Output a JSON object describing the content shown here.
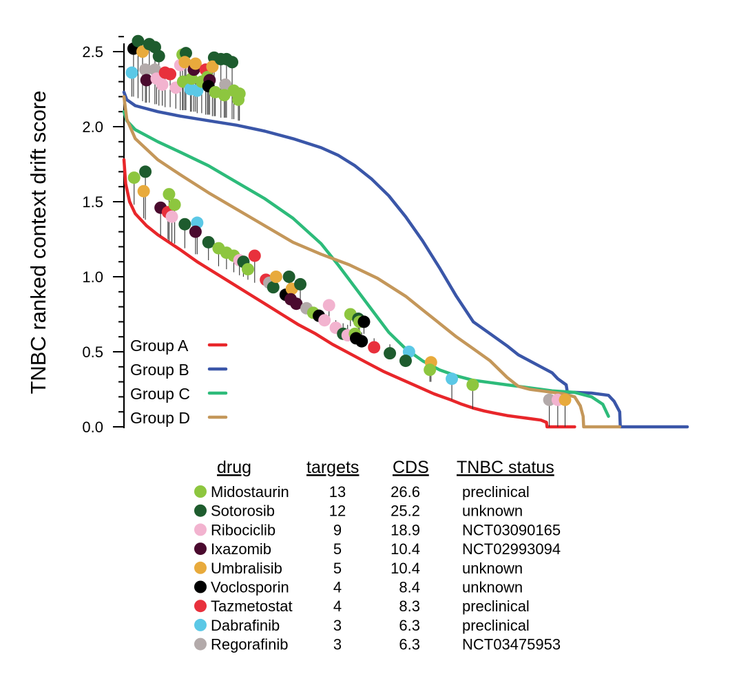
{
  "chart_data": {
    "type": "line",
    "ylabel": "TNBC ranked context drift score",
    "xlabel": "",
    "ylim": [
      0,
      2.5
    ],
    "y_ticks": [
      "0.0",
      "0.5",
      "1.0",
      "1.5",
      "2.0",
      "2.5"
    ],
    "x_range": [
      0,
      1000
    ],
    "legend_position": "bottom-left",
    "series": [
      {
        "name": "Group A",
        "color": "#e8262a",
        "x": [
          0,
          3,
          10,
          20,
          40,
          60,
          80,
          100,
          130,
          160,
          190,
          220,
          250,
          280,
          310,
          340,
          370,
          400,
          430,
          460,
          490,
          520,
          550,
          580,
          600,
          620,
          640,
          660,
          680,
          700,
          720,
          740,
          750,
          751,
          770,
          790,
          800
        ],
        "y": [
          1.78,
          1.62,
          1.5,
          1.42,
          1.34,
          1.28,
          1.23,
          1.18,
          1.1,
          1.03,
          0.96,
          0.89,
          0.82,
          0.75,
          0.68,
          0.62,
          0.55,
          0.49,
          0.43,
          0.37,
          0.32,
          0.27,
          0.22,
          0.18,
          0.15,
          0.125,
          0.105,
          0.09,
          0.075,
          0.065,
          0.055,
          0.045,
          0.03,
          0.0,
          0.0,
          0.0,
          0.0
        ]
      },
      {
        "name": "Group B",
        "color": "#3a56a8",
        "x": [
          0,
          5,
          20,
          60,
          100,
          150,
          200,
          250,
          300,
          350,
          380,
          410,
          440,
          470,
          500,
          530,
          560,
          590,
          620,
          650,
          680,
          700,
          720,
          740,
          760,
          770,
          785,
          787,
          800,
          830,
          860,
          870,
          880,
          881,
          1000
        ],
        "y": [
          2.23,
          2.18,
          2.14,
          2.1,
          2.07,
          2.04,
          2.01,
          1.97,
          1.92,
          1.86,
          1.81,
          1.74,
          1.65,
          1.54,
          1.4,
          1.24,
          1.06,
          0.87,
          0.7,
          0.62,
          0.54,
          0.48,
          0.44,
          0.4,
          0.36,
          0.32,
          0.28,
          0.23,
          0.23,
          0.225,
          0.21,
          0.17,
          0.1,
          0.0,
          0.0
        ]
      },
      {
        "name": "Group C",
        "color": "#2dbb7a",
        "x": [
          0,
          5,
          20,
          60,
          100,
          150,
          200,
          250,
          300,
          350,
          380,
          410,
          440,
          470,
          500,
          530,
          560,
          590,
          620,
          650,
          680,
          700,
          720,
          740,
          760,
          800,
          830,
          850,
          860
        ],
        "y": [
          2.1,
          2.04,
          1.98,
          1.9,
          1.83,
          1.74,
          1.63,
          1.52,
          1.39,
          1.22,
          1.08,
          0.93,
          0.78,
          0.63,
          0.52,
          0.44,
          0.38,
          0.34,
          0.31,
          0.295,
          0.28,
          0.27,
          0.26,
          0.25,
          0.24,
          0.23,
          0.2,
          0.15,
          0.07
        ]
      },
      {
        "name": "Group D",
        "color": "#c4975a",
        "x": [
          0,
          5,
          20,
          60,
          100,
          150,
          200,
          250,
          300,
          350,
          400,
          450,
          500,
          530,
          560,
          590,
          620,
          650,
          680,
          700,
          720,
          740,
          760,
          780,
          800,
          810,
          815,
          816,
          880
        ],
        "y": [
          2.2,
          2.05,
          1.92,
          1.78,
          1.68,
          1.56,
          1.45,
          1.34,
          1.23,
          1.15,
          1.08,
          0.99,
          0.87,
          0.78,
          0.69,
          0.6,
          0.52,
          0.44,
          0.33,
          0.27,
          0.25,
          0.24,
          0.23,
          0.22,
          0.2,
          0.14,
          0.07,
          0.0,
          0.0
        ]
      }
    ],
    "drug_markers": [
      {
        "drug": "Voclosporin",
        "x": 17,
        "y": 2.52,
        "base": 2.2
      },
      {
        "drug": "Sotorosib",
        "x": 25,
        "y": 2.57,
        "base": 2.19
      },
      {
        "drug": "Umbralisib",
        "x": 33,
        "y": 2.5,
        "base": 2.17
      },
      {
        "drug": "Dabrafinib",
        "x": 14,
        "y": 2.36,
        "base": 2.2
      },
      {
        "drug": "Sotorosib",
        "x": 45,
        "y": 2.55,
        "base": 2.16
      },
      {
        "drug": "Regorafinib",
        "x": 38,
        "y": 2.38,
        "base": 2.16
      },
      {
        "drug": "Ixazomib",
        "x": 40,
        "y": 2.31,
        "base": 2.16
      },
      {
        "drug": "Sotorosib",
        "x": 55,
        "y": 2.53,
        "base": 2.15
      },
      {
        "drug": "Regorafinib",
        "x": 55,
        "y": 2.38,
        "base": 2.15
      },
      {
        "drug": "Sotorosib",
        "x": 62,
        "y": 2.47,
        "base": 2.14
      },
      {
        "drug": "Ribociclib",
        "x": 58,
        "y": 2.32,
        "base": 2.15
      },
      {
        "drug": "Ribociclib",
        "x": 68,
        "y": 2.28,
        "base": 2.14
      },
      {
        "drug": "Tazmetostat",
        "x": 73,
        "y": 2.36,
        "base": 2.13
      },
      {
        "drug": "Tazmetostat",
        "x": 82,
        "y": 2.35,
        "base": 2.13
      },
      {
        "drug": "Ribociclib",
        "x": 92,
        "y": 2.26,
        "base": 2.12
      },
      {
        "drug": "Ribociclib",
        "x": 100,
        "y": 2.41,
        "base": 2.11
      },
      {
        "drug": "Midostaurin",
        "x": 104,
        "y": 2.48,
        "base": 2.11
      },
      {
        "drug": "Sotorosib",
        "x": 110,
        "y": 2.49,
        "base": 2.11
      },
      {
        "drug": "Umbralisib",
        "x": 108,
        "y": 2.43,
        "base": 2.11
      },
      {
        "drug": "Midostaurin",
        "x": 105,
        "y": 2.3,
        "base": 2.11
      },
      {
        "drug": "Dabrafinib",
        "x": 118,
        "y": 2.25,
        "base": 2.1
      },
      {
        "drug": "Midostaurin",
        "x": 120,
        "y": 2.32,
        "base": 2.1
      },
      {
        "drug": "Ixazomib",
        "x": 124,
        "y": 2.38,
        "base": 2.1
      },
      {
        "drug": "Umbralisib",
        "x": 127,
        "y": 2.42,
        "base": 2.1
      },
      {
        "drug": "Dabrafinib",
        "x": 130,
        "y": 2.24,
        "base": 2.09
      },
      {
        "drug": "Midostaurin",
        "x": 138,
        "y": 2.3,
        "base": 2.09
      },
      {
        "drug": "Tazmetostat",
        "x": 145,
        "y": 2.38,
        "base": 2.08
      },
      {
        "drug": "Midostaurin",
        "x": 148,
        "y": 2.33,
        "base": 2.08
      },
      {
        "drug": "Ixazomib",
        "x": 152,
        "y": 2.31,
        "base": 2.08
      },
      {
        "drug": "Voclosporin",
        "x": 150,
        "y": 2.27,
        "base": 2.08
      },
      {
        "drug": "Sotorosib",
        "x": 160,
        "y": 2.46,
        "base": 2.07
      },
      {
        "drug": "Umbralisib",
        "x": 157,
        "y": 2.4,
        "base": 2.07
      },
      {
        "drug": "Midostaurin",
        "x": 162,
        "y": 2.23,
        "base": 2.07
      },
      {
        "drug": "Sotorosib",
        "x": 172,
        "y": 2.45,
        "base": 2.06
      },
      {
        "drug": "Regorafinib",
        "x": 180,
        "y": 2.28,
        "base": 2.06
      },
      {
        "drug": "Sotorosib",
        "x": 182,
        "y": 2.45,
        "base": 2.06
      },
      {
        "drug": "Midostaurin",
        "x": 178,
        "y": 2.21,
        "base": 2.06
      },
      {
        "drug": "Sotorosib",
        "x": 192,
        "y": 2.43,
        "base": 2.05
      },
      {
        "drug": "Midostaurin",
        "x": 195,
        "y": 2.24,
        "base": 2.05
      },
      {
        "drug": "Midostaurin",
        "x": 205,
        "y": 2.22,
        "base": 2.04
      },
      {
        "drug": "Midostaurin",
        "x": 203,
        "y": 2.18,
        "base": 2.04
      },
      {
        "drug": "Midostaurin",
        "x": 18,
        "y": 1.66,
        "base": 1.48
      },
      {
        "drug": "Sotorosib",
        "x": 38,
        "y": 1.7,
        "base": 1.38
      },
      {
        "drug": "Umbralisib",
        "x": 35,
        "y": 1.57,
        "base": 1.39
      },
      {
        "drug": "Midostaurin",
        "x": 80,
        "y": 1.55,
        "base": 1.24
      },
      {
        "drug": "Ixazomib",
        "x": 65,
        "y": 1.46,
        "base": 1.27
      },
      {
        "drug": "Tazmetostat",
        "x": 78,
        "y": 1.43,
        "base": 1.25
      },
      {
        "drug": "Ribociclib",
        "x": 85,
        "y": 1.4,
        "base": 1.23
      },
      {
        "drug": "Midostaurin",
        "x": 90,
        "y": 1.48,
        "base": 1.22
      },
      {
        "drug": "Sotorosib",
        "x": 108,
        "y": 1.35,
        "base": 1.19
      },
      {
        "drug": "Dabrafinib",
        "x": 130,
        "y": 1.36,
        "base": 1.15
      },
      {
        "drug": "Ixazomib",
        "x": 127,
        "y": 1.3,
        "base": 1.15
      },
      {
        "drug": "Sotorosib",
        "x": 150,
        "y": 1.23,
        "base": 1.11
      },
      {
        "drug": "Midostaurin",
        "x": 168,
        "y": 1.19,
        "base": 1.07
      },
      {
        "drug": "Midostaurin",
        "x": 182,
        "y": 1.16,
        "base": 1.05
      },
      {
        "drug": "Midostaurin",
        "x": 195,
        "y": 1.14,
        "base": 1.03
      },
      {
        "drug": "Ribociclib",
        "x": 205,
        "y": 1.11,
        "base": 1.01
      },
      {
        "drug": "Sotorosib",
        "x": 212,
        "y": 1.1,
        "base": 1.0
      },
      {
        "drug": "Midostaurin",
        "x": 220,
        "y": 1.05,
        "base": 0.98
      },
      {
        "drug": "Tazmetostat",
        "x": 232,
        "y": 1.14,
        "base": 0.96
      },
      {
        "drug": "Tazmetostat",
        "x": 252,
        "y": 0.98,
        "base": 0.93
      },
      {
        "drug": "Regorafinib",
        "x": 258,
        "y": 0.96,
        "base": 0.92
      },
      {
        "drug": "Sotorosib",
        "x": 265,
        "y": 0.93,
        "base": 0.91
      },
      {
        "drug": "Umbralisib",
        "x": 270,
        "y": 1.0,
        "base": 0.9
      },
      {
        "drug": "Voclosporin",
        "x": 287,
        "y": 0.88,
        "base": 0.87
      },
      {
        "drug": "Sotorosib",
        "x": 293,
        "y": 1.0,
        "base": 0.86
      },
      {
        "drug": "Umbralisib",
        "x": 298,
        "y": 0.92,
        "base": 0.85
      },
      {
        "drug": "Ixazomib",
        "x": 296,
        "y": 0.85,
        "base": 0.85
      },
      {
        "drug": "Ixazomib",
        "x": 306,
        "y": 0.82,
        "base": 0.83
      },
      {
        "drug": "Sotorosib",
        "x": 313,
        "y": 0.95,
        "base": 0.82
      },
      {
        "drug": "Regorafinib",
        "x": 324,
        "y": 0.79,
        "base": 0.8
      },
      {
        "drug": "Midostaurin",
        "x": 336,
        "y": 0.76,
        "base": 0.78
      },
      {
        "drug": "Voclosporin",
        "x": 346,
        "y": 0.74,
        "base": 0.76
      },
      {
        "drug": "Ribociclib",
        "x": 356,
        "y": 0.71,
        "base": 0.74
      },
      {
        "drug": "Ribociclib",
        "x": 364,
        "y": 0.81,
        "base": 0.73
      },
      {
        "drug": "Ribociclib",
        "x": 376,
        "y": 0.66,
        "base": 0.71
      },
      {
        "drug": "Sotorosib",
        "x": 389,
        "y": 0.62,
        "base": 0.69
      },
      {
        "drug": "Ribociclib",
        "x": 397,
        "y": 0.61,
        "base": 0.68
      },
      {
        "drug": "Midostaurin",
        "x": 402,
        "y": 0.75,
        "base": 0.67
      },
      {
        "drug": "Midostaurin",
        "x": 410,
        "y": 0.62,
        "base": 0.65
      },
      {
        "drug": "Voclosporin",
        "x": 412,
        "y": 0.59,
        "base": 0.65
      },
      {
        "drug": "Sotorosib",
        "x": 416,
        "y": 0.72,
        "base": 0.64
      },
      {
        "drug": "Voclosporin",
        "x": 422,
        "y": 0.57,
        "base": 0.63
      },
      {
        "drug": "Midostaurin",
        "x": 418,
        "y": 0.7,
        "base": 0.64
      },
      {
        "drug": "Voclosporin",
        "x": 426,
        "y": 0.7,
        "base": 0.62
      },
      {
        "drug": "Tazmetostat",
        "x": 444,
        "y": 0.53,
        "base": 0.59
      },
      {
        "drug": "Sotorosib",
        "x": 472,
        "y": 0.49,
        "base": 0.55
      },
      {
        "drug": "Dabrafinib",
        "x": 506,
        "y": 0.5,
        "base": 0.5
      },
      {
        "drug": "Sotorosib",
        "x": 500,
        "y": 0.44,
        "base": 0.51
      },
      {
        "drug": "Umbralisib",
        "x": 545,
        "y": 0.43,
        "base": 0.3
      },
      {
        "drug": "Midostaurin",
        "x": 543,
        "y": 0.38,
        "base": 0.3
      },
      {
        "drug": "Dabrafinib",
        "x": 582,
        "y": 0.32,
        "base": 0.18
      },
      {
        "drug": "Midostaurin",
        "x": 619,
        "y": 0.28,
        "base": 0.12
      },
      {
        "drug": "Regorafinib",
        "x": 755,
        "y": 0.18,
        "base": 0.0
      },
      {
        "drug": "Ribociclib",
        "x": 770,
        "y": 0.18,
        "base": 0.0
      },
      {
        "drug": "Umbralisib",
        "x": 783,
        "y": 0.18,
        "base": 0.0
      }
    ]
  },
  "legend": [
    {
      "label": "Group A",
      "color": "#e8262a"
    },
    {
      "label": "Group B",
      "color": "#3a56a8"
    },
    {
      "label": "Group C",
      "color": "#2dbb7a"
    },
    {
      "label": "Group D",
      "color": "#c4975a"
    }
  ],
  "drug_table": {
    "headers": {
      "drug": "drug",
      "targets": "targets",
      "cds": "CDS",
      "status": "TNBC status"
    },
    "rows": [
      {
        "drug": "Midostaurin",
        "color": "#8dc63f",
        "targets": "13",
        "cds": "26.6",
        "status": "preclinical"
      },
      {
        "drug": "Sotorosib",
        "color": "#1e5c2e",
        "targets": "12",
        "cds": "25.2",
        "status": "unknown"
      },
      {
        "drug": "Ribociclib",
        "color": "#f2b3cf",
        "targets": "9",
        "cds": "18.9",
        "status": "NCT03090165"
      },
      {
        "drug": "Ixazomib",
        "color": "#4a0a2e",
        "targets": "5",
        "cds": "10.4",
        "status": "NCT02993094"
      },
      {
        "drug": "Umbralisib",
        "color": "#e8aa3c",
        "targets": "5",
        "cds": "10.4",
        "status": "unknown"
      },
      {
        "drug": "Voclosporin",
        "color": "#000000",
        "targets": "4",
        "cds": "8.4",
        "status": "unknown"
      },
      {
        "drug": "Tazmetostat",
        "color": "#e8303c",
        "targets": "4",
        "cds": "8.3",
        "status": "preclinical"
      },
      {
        "drug": "Dabrafinib",
        "color": "#5bc8e6",
        "targets": "3",
        "cds": "6.3",
        "status": "preclinical"
      },
      {
        "drug": "Regorafinib",
        "color": "#b3aaaa",
        "targets": "3",
        "cds": "6.3",
        "status": "NCT03475953"
      }
    ]
  }
}
